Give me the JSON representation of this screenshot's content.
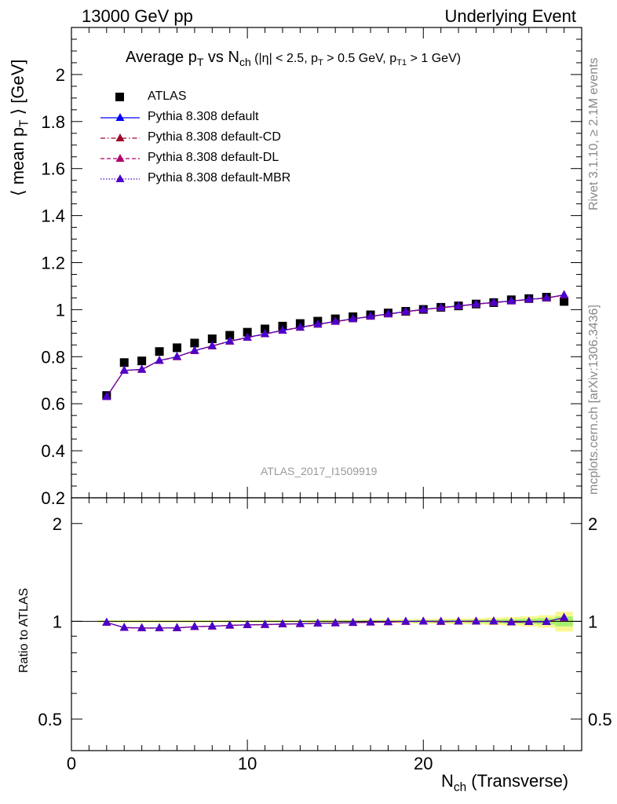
{
  "header": {
    "left": "13000 GeV pp",
    "right": "Underlying Event"
  },
  "side_labels": {
    "rivet": "Rivet 3.1.10, ≥ 2.1M events",
    "mcplots": "mcplots.cern.ch [arXiv:1306.3436]"
  },
  "analysis_id": "ATLAS_2017_I1509919",
  "chart_data": [
    {
      "type": "scatter",
      "title": "Average p_T vs N_ch (|η| < 2.5, p_T > 0.5 GeV, p_T1 > 1 GeV)",
      "title_main": "Average p",
      "title_sub1": "T",
      "title_mid": " vs N",
      "title_sub2": "ch",
      "title_cut_a": " (|η| < 2.5, p",
      "title_cut_a_sub": "T",
      "title_cut_b": " > 0.5 GeV, p",
      "title_cut_b_sub": "T1",
      "title_cut_c": " > 1 GeV)",
      "ylabel": "⟨ mean p_T ⟩ [GeV]",
      "ylabel_main": "⟨ mean p",
      "ylabel_sub": "T",
      "ylabel_tail": " ⟩ [GeV]",
      "xlim": [
        0,
        29
      ],
      "ylim": [
        0.2,
        2.2
      ],
      "yticks": [
        "0.2",
        "0.4",
        "0.6",
        "0.8",
        "1",
        "1.2",
        "1.4",
        "1.6",
        "1.8",
        "2"
      ],
      "legend_position": "top-left",
      "x": [
        2,
        3,
        4,
        5,
        6,
        7,
        8,
        9,
        10,
        11,
        12,
        13,
        14,
        15,
        16,
        17,
        18,
        19,
        20,
        21,
        22,
        23,
        24,
        25,
        26,
        27,
        28
      ],
      "series": [
        {
          "name": "ATLAS",
          "color": "#000000",
          "marker": "square",
          "values": [
            0.635,
            0.775,
            0.782,
            0.822,
            0.838,
            0.858,
            0.876,
            0.891,
            0.904,
            0.918,
            0.93,
            0.941,
            0.951,
            0.961,
            0.97,
            0.978,
            0.986,
            0.993,
            1.001,
            1.01,
            1.016,
            1.024,
            1.03,
            1.042,
            1.047,
            1.053,
            1.035
          ]
        },
        {
          "name": "Pythia 8.308 default",
          "color": "#0000ff",
          "line": "solid",
          "marker": "triangle",
          "values": [
            0.63,
            0.742,
            0.746,
            0.784,
            0.8,
            0.826,
            0.846,
            0.866,
            0.882,
            0.897,
            0.912,
            0.925,
            0.938,
            0.95,
            0.961,
            0.972,
            0.982,
            0.992,
            1.001,
            1.009,
            1.016,
            1.024,
            1.031,
            1.037,
            1.044,
            1.05,
            1.063
          ]
        },
        {
          "name": "Pythia 8.308 default-CD",
          "color": "#a0002a",
          "line": "dashdot",
          "marker": "triangle",
          "values": [
            0.629,
            0.741,
            0.745,
            0.783,
            0.799,
            0.825,
            0.845,
            0.865,
            0.881,
            0.896,
            0.911,
            0.924,
            0.937,
            0.949,
            0.96,
            0.971,
            0.981,
            0.991,
            1.0,
            1.008,
            1.015,
            1.023,
            1.03,
            1.036,
            1.043,
            1.049,
            1.062
          ]
        },
        {
          "name": "Pythia 8.308 default-DL",
          "color": "#b0006a",
          "line": "dashed",
          "marker": "triangle",
          "values": [
            0.629,
            0.741,
            0.745,
            0.783,
            0.799,
            0.825,
            0.845,
            0.865,
            0.881,
            0.896,
            0.911,
            0.924,
            0.937,
            0.949,
            0.96,
            0.971,
            0.981,
            0.991,
            1.0,
            1.008,
            1.015,
            1.023,
            1.03,
            1.036,
            1.043,
            1.049,
            1.062
          ]
        },
        {
          "name": "Pythia 8.308 default-MBR",
          "color": "#4b00cc",
          "line": "dotted",
          "marker": "triangle",
          "values": [
            0.63,
            0.742,
            0.746,
            0.784,
            0.8,
            0.826,
            0.846,
            0.866,
            0.882,
            0.897,
            0.912,
            0.925,
            0.938,
            0.95,
            0.961,
            0.972,
            0.982,
            0.992,
            1.001,
            1.009,
            1.016,
            1.024,
            1.031,
            1.037,
            1.044,
            1.05,
            1.063
          ]
        }
      ]
    },
    {
      "type": "line",
      "ylabel": "Ratio to ATLAS",
      "xlabel": "N_ch (Transverse)",
      "xlabel_main": "N",
      "xlabel_sub": "ch",
      "xlabel_tail": " (Transverse)",
      "xlim": [
        0,
        29
      ],
      "ylim": [
        0.4,
        2.4
      ],
      "y_scale": "log",
      "yticks": [
        "0.5",
        "1",
        "2"
      ],
      "xticks": [
        "0",
        "10",
        "20"
      ],
      "x": [
        2,
        3,
        4,
        5,
        6,
        7,
        8,
        9,
        10,
        11,
        12,
        13,
        14,
        15,
        16,
        17,
        18,
        19,
        20,
        21,
        22,
        23,
        24,
        25,
        26,
        27,
        28
      ],
      "band": {
        "color_inner": "#a8f070",
        "color_outer": "#f8f890",
        "halfwidth": [
          0.004,
          0.004,
          0.004,
          0.004,
          0.004,
          0.004,
          0.004,
          0.004,
          0.004,
          0.004,
          0.004,
          0.004,
          0.005,
          0.005,
          0.005,
          0.006,
          0.006,
          0.007,
          0.008,
          0.009,
          0.01,
          0.011,
          0.013,
          0.015,
          0.018,
          0.022,
          0.035
        ]
      },
      "series": [
        {
          "name": "Pythia 8.308 default",
          "color": "#0000ff",
          "line": "solid",
          "values": [
            0.992,
            0.957,
            0.954,
            0.954,
            0.955,
            0.963,
            0.966,
            0.972,
            0.976,
            0.977,
            0.981,
            0.983,
            0.986,
            0.988,
            0.991,
            0.994,
            0.996,
            0.999,
            1.0,
            0.999,
            1.0,
            1.0,
            1.001,
            0.995,
            0.997,
            0.997,
            1.027
          ]
        },
        {
          "name": "Pythia 8.308 default-CD",
          "color": "#a0002a",
          "line": "dashdot",
          "values": [
            0.991,
            0.956,
            0.953,
            0.953,
            0.954,
            0.962,
            0.965,
            0.971,
            0.975,
            0.976,
            0.98,
            0.982,
            0.985,
            0.987,
            0.99,
            0.993,
            0.995,
            0.998,
            0.999,
            0.998,
            0.999,
            0.999,
            1.0,
            0.994,
            0.996,
            0.996,
            1.026
          ]
        },
        {
          "name": "Pythia 8.308 default-DL",
          "color": "#b0006a",
          "line": "dashed",
          "values": [
            0.991,
            0.956,
            0.953,
            0.953,
            0.954,
            0.962,
            0.965,
            0.971,
            0.975,
            0.976,
            0.98,
            0.982,
            0.985,
            0.987,
            0.99,
            0.993,
            0.995,
            0.998,
            0.999,
            0.998,
            0.999,
            0.999,
            1.0,
            0.994,
            0.996,
            0.996,
            1.026
          ]
        },
        {
          "name": "Pythia 8.308 default-MBR",
          "color": "#4b00cc",
          "line": "dotted",
          "values": [
            0.992,
            0.957,
            0.954,
            0.954,
            0.955,
            0.963,
            0.966,
            0.972,
            0.976,
            0.977,
            0.981,
            0.983,
            0.986,
            0.988,
            0.991,
            0.994,
            0.996,
            0.999,
            1.0,
            0.999,
            1.0,
            1.0,
            1.001,
            0.995,
            0.997,
            0.997,
            1.027
          ]
        }
      ]
    }
  ]
}
